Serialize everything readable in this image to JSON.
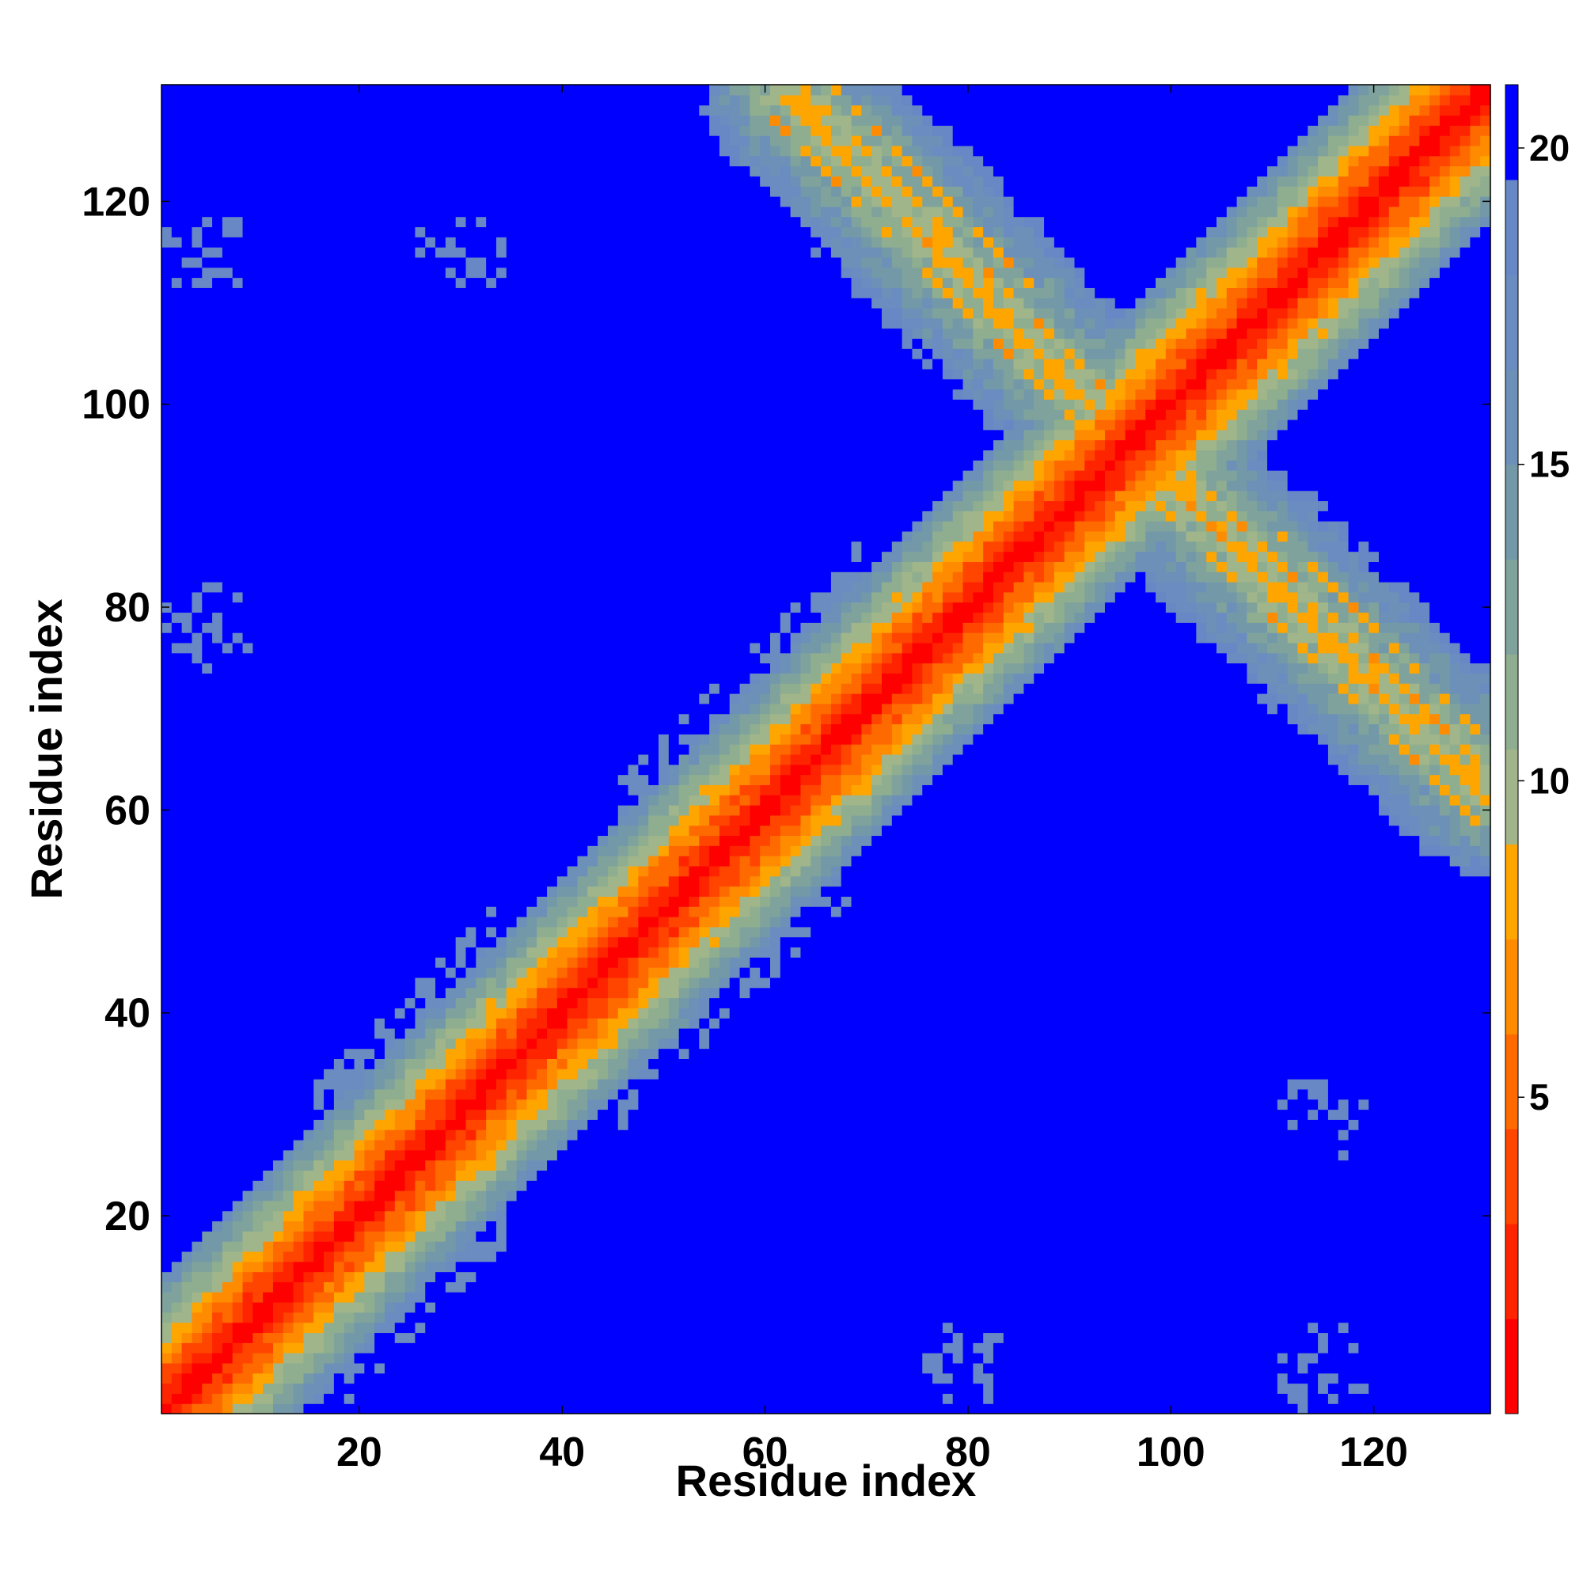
{
  "chart_data": {
    "type": "heatmap",
    "title": "",
    "xlabel": "Residue index",
    "ylabel": "Residue index",
    "n_residues": 131,
    "xlim": [
      0.5,
      131.5
    ],
    "ylim": [
      0.5,
      131.5
    ],
    "x_ticks": [
      20,
      40,
      60,
      80,
      100,
      120
    ],
    "y_ticks": [
      20,
      40,
      60,
      80,
      100,
      120
    ],
    "colorbar": {
      "vmin": 0,
      "vmax": 21,
      "ticks": [
        5,
        10,
        15,
        20
      ],
      "levels": [
        {
          "upper": 1.5,
          "color": "#ff0000"
        },
        {
          "upper": 3,
          "color": "#ff2400"
        },
        {
          "upper": 4.5,
          "color": "#ff4500"
        },
        {
          "upper": 6,
          "color": "#ff6a00"
        },
        {
          "upper": 7.5,
          "color": "#ff8c00"
        },
        {
          "upper": 9,
          "color": "#ffa500"
        },
        {
          "upper": 10.5,
          "color": "#a0b58a"
        },
        {
          "upper": 12,
          "color": "#8fae8f"
        },
        {
          "upper": 13.5,
          "color": "#7fa39c"
        },
        {
          "upper": 15,
          "color": "#7399a9"
        },
        {
          "upper": 16.5,
          "color": "#6c90b8"
        },
        {
          "upper": 18,
          "color": "#6a8cc0"
        },
        {
          "upper": 19.5,
          "color": "#6788c4"
        },
        {
          "upper": 21,
          "color": "#0000ff"
        }
      ]
    },
    "background_value": 21,
    "features": {
      "main_diagonal": {
        "x_start": 1,
        "x_end": 131,
        "note": "distance increases with |i-j|"
      },
      "antiparallel_band_1": {
        "from": [
          62,
          131
        ],
        "to": [
          96,
          96
        ]
      },
      "antiparallel_band_2": {
        "from": [
          96,
          96
        ],
        "to": [
          131,
          62
        ]
      },
      "contact_clusters": [
        {
          "x": 5,
          "y": 78
        },
        {
          "x": 30,
          "y": 115
        },
        {
          "x": 80,
          "y": 5
        },
        {
          "x": 115,
          "y": 30
        },
        {
          "x": 5,
          "y": 115
        },
        {
          "x": 115,
          "y": 5
        }
      ]
    }
  }
}
